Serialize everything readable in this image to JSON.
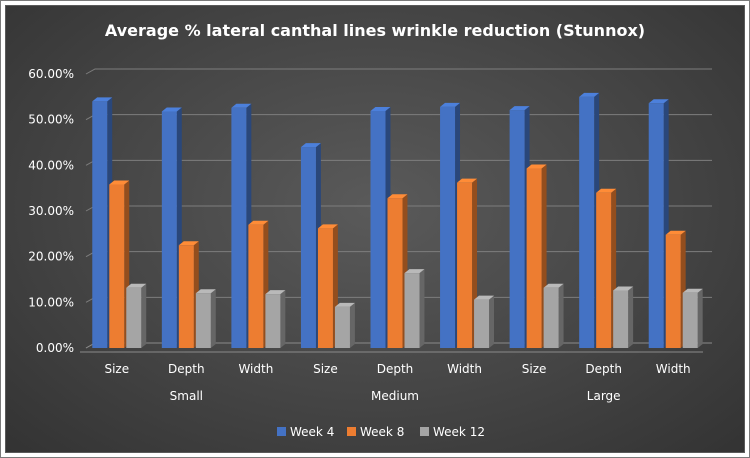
{
  "chart_data": {
    "type": "bar",
    "title": "Average % lateral canthal lines wrinkle reduction (Stunnox)",
    "xlabel": "",
    "ylabel": "",
    "ylim": [
      0,
      60
    ],
    "y_ticks": [
      "0.00%",
      "10.00%",
      "20.00%",
      "30.00%",
      "40.00%",
      "50.00%",
      "60.00%"
    ],
    "categories": [
      "Size",
      "Depth",
      "Width",
      "Size",
      "Depth",
      "Width",
      "Size",
      "Depth",
      "Width"
    ],
    "groups": [
      "Small",
      "Medium",
      "Large"
    ],
    "series": [
      {
        "name": "Week 4",
        "color": "#4472c4",
        "values": [
          54.0,
          51.8,
          52.6,
          44.0,
          51.9,
          52.8,
          52.1,
          55.0,
          53.6
        ]
      },
      {
        "name": "Week 8",
        "color": "#ed7d31",
        "values": [
          35.8,
          22.5,
          27.0,
          26.2,
          32.8,
          36.2,
          39.3,
          34.0,
          24.8
        ]
      },
      {
        "name": "Week 12",
        "color": "#a5a5a5",
        "values": [
          13.2,
          12.0,
          11.8,
          9.0,
          16.4,
          10.6,
          13.2,
          12.6,
          12.1
        ]
      }
    ],
    "legend_position": "bottom",
    "grid": true
  }
}
